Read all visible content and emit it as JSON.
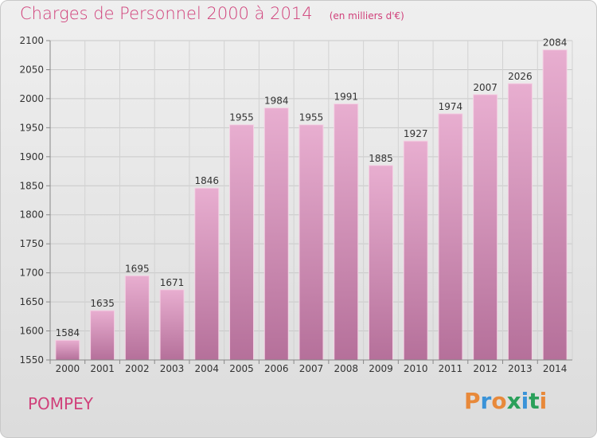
{
  "title": "Charges de Personnel 2000 à 2014",
  "subtitle": "(en milliers d'€)",
  "commune": "POMPEY",
  "logo": {
    "text": "Proxiti",
    "colors": [
      "#e8893a",
      "#3a93d8",
      "#e8893a",
      "#2aa05a",
      "#3a93d8",
      "#2aa05a",
      "#e8893a"
    ]
  },
  "colors": {
    "bar_top": "#e8aed0",
    "bar_bottom": "#b5709a",
    "title": "#d0407a"
  },
  "chart_data": {
    "type": "bar",
    "categories": [
      "2000",
      "2001",
      "2002",
      "2003",
      "2004",
      "2005",
      "2006",
      "2007",
      "2008",
      "2009",
      "2010",
      "2011",
      "2012",
      "2013",
      "2014"
    ],
    "values": [
      1584,
      1635,
      1695,
      1671,
      1846,
      1955,
      1984,
      1955,
      1991,
      1885,
      1927,
      1974,
      2007,
      2026,
      2084
    ],
    "title": "Charges de Personnel 2000 à 2014",
    "xlabel": "",
    "ylabel": "",
    "ylim": [
      1550,
      2100
    ],
    "yticks": [
      1550,
      1600,
      1650,
      1700,
      1750,
      1800,
      1850,
      1900,
      1950,
      2000,
      2050,
      2100
    ],
    "grid": true
  }
}
